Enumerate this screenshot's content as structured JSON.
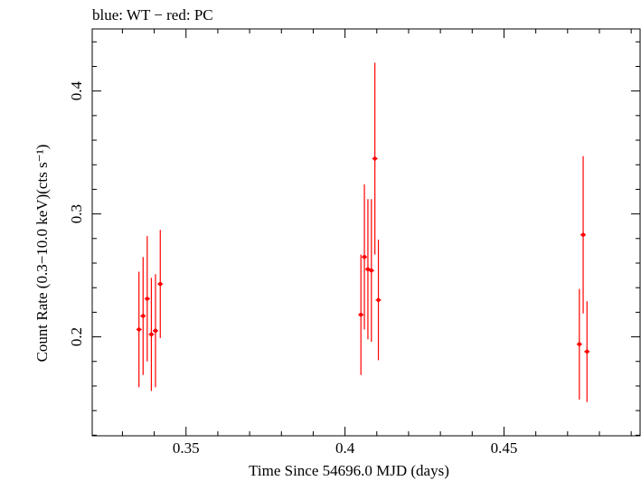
{
  "chart_data": {
    "type": "scatter",
    "title": "blue: WT − red: PC",
    "xlabel": "Time Since 54696.0 MJD (days)",
    "ylabel": "Count Rate (0.3−10.0 keV)(cts s⁻¹)",
    "xlim": [
      0.3205,
      0.4928
    ],
    "ylim": [
      0.1195,
      0.4505
    ],
    "xticks": [
      0.35,
      0.4,
      0.45
    ],
    "xtick_labels": [
      "0.35",
      "0.4",
      "0.45"
    ],
    "yticks": [
      0.2,
      0.3,
      0.4
    ],
    "ytick_labels": [
      "0.2",
      "0.3",
      "0.4"
    ],
    "grid": false,
    "colors": {
      "PC": "#ff0000",
      "WT": "#0000ff",
      "axes": "#000000"
    },
    "series": [
      {
        "name": "PC",
        "color": "#ff0000",
        "points": [
          {
            "x": 0.3352,
            "y": 0.206,
            "err": 0.047
          },
          {
            "x": 0.3365,
            "y": 0.217,
            "err": 0.048
          },
          {
            "x": 0.3378,
            "y": 0.231,
            "err": 0.051
          },
          {
            "x": 0.3391,
            "y": 0.202,
            "err": 0.046
          },
          {
            "x": 0.3404,
            "y": 0.205,
            "err": 0.046
          },
          {
            "x": 0.3419,
            "y": 0.243,
            "err": 0.044
          },
          {
            "x": 0.405,
            "y": 0.218,
            "err": 0.049
          },
          {
            "x": 0.4061,
            "y": 0.265,
            "err": 0.059
          },
          {
            "x": 0.4072,
            "y": 0.255,
            "err": 0.057
          },
          {
            "x": 0.4083,
            "y": 0.254,
            "err": 0.058
          },
          {
            "x": 0.4094,
            "y": 0.345,
            "err": 0.078
          },
          {
            "x": 0.4105,
            "y": 0.23,
            "err": 0.049
          },
          {
            "x": 0.4737,
            "y": 0.194,
            "err": 0.045
          },
          {
            "x": 0.4749,
            "y": 0.283,
            "err": 0.064
          },
          {
            "x": 0.4761,
            "y": 0.188,
            "err": 0.041
          }
        ]
      }
    ]
  }
}
